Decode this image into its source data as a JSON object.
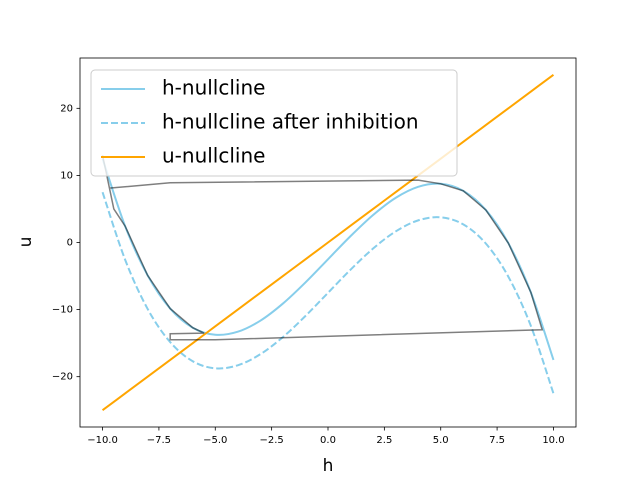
{
  "chart_data": {
    "type": "line",
    "xlabel": "h",
    "ylabel": "u",
    "x": [
      -10,
      -9,
      -8,
      -7,
      -6,
      -5,
      -4,
      -3,
      -2,
      -1,
      0,
      1,
      2,
      3,
      4,
      5,
      6,
      7,
      8,
      9,
      10
    ],
    "series": [
      {
        "name": "h-nullcline",
        "color": "#87ceeb",
        "style": "solid",
        "values": [
          12.5,
          2.45,
          -4.9,
          -9.85,
          -12.7,
          -13.75,
          -13.3,
          -11.65,
          -9.1,
          -5.95,
          -2.5,
          0.95,
          4.1,
          6.65,
          8.3,
          8.75,
          7.7,
          4.85,
          -0.1,
          -7.45,
          -17.5
        ]
      },
      {
        "name": "h-nullcline after inhibition",
        "color": "#87ceeb",
        "style": "dashed",
        "values": [
          7.5,
          -2.55,
          -9.9,
          -14.85,
          -17.7,
          -18.75,
          -18.3,
          -16.65,
          -14.1,
          -10.95,
          -7.5,
          -4.05,
          -0.9,
          1.65,
          3.3,
          3.75,
          2.7,
          -0.15,
          -5.1,
          -12.45,
          -22.5
        ]
      },
      {
        "name": "u-nullcline",
        "color": "#ffa500",
        "style": "solid",
        "values": [
          -25,
          -22.5,
          -20,
          -17.5,
          -15,
          -12.5,
          -10,
          -7.5,
          -5,
          -2.5,
          0,
          2.5,
          5,
          7.5,
          10,
          12.5,
          15,
          17.5,
          20,
          22.5,
          25
        ]
      }
    ],
    "trajectory": {
      "color": "#000000",
      "alpha": 0.5,
      "x": [
        -10,
        -9.5,
        -9,
        -8,
        -7,
        -6,
        -5.5,
        -7,
        -7,
        -5,
        9.5,
        9,
        8,
        7,
        6,
        5,
        4,
        -7,
        -9.7
      ],
      "y": [
        13,
        5,
        2.45,
        -4.9,
        -9.85,
        -12.7,
        -13.5,
        -13.6,
        -14.5,
        -14.5,
        -13,
        -7.45,
        -0.1,
        4.85,
        7.7,
        8.75,
        9.3,
        8.9,
        8.1
      ]
    },
    "xlim": [
      -11,
      11
    ],
    "ylim": [
      -27.5,
      27.5
    ],
    "xticks": [
      {
        "value": -10,
        "label": "−10.0"
      },
      {
        "value": -7.5,
        "label": "−7.5"
      },
      {
        "value": -5,
        "label": "−5.0"
      },
      {
        "value": -2.5,
        "label": "−2.5"
      },
      {
        "value": 0,
        "label": "0.0"
      },
      {
        "value": 2.5,
        "label": "2.5"
      },
      {
        "value": 5,
        "label": "5.0"
      },
      {
        "value": 7.5,
        "label": "7.5"
      },
      {
        "value": 10,
        "label": "10.0"
      }
    ],
    "yticks": [
      {
        "value": -20,
        "label": "−20"
      },
      {
        "value": -10,
        "label": "−10"
      },
      0,
      10,
      20
    ],
    "legend": "upper left"
  }
}
